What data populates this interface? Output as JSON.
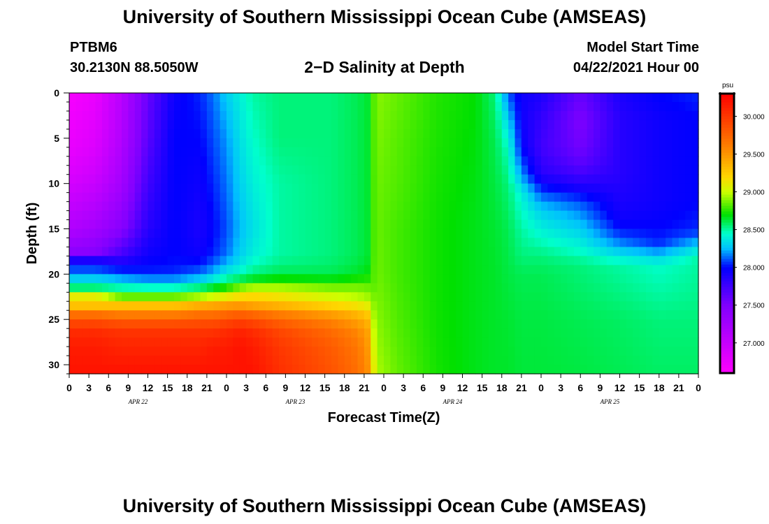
{
  "header": {
    "title": "University of Southern Mississippi Ocean Cube (AMSEAS)",
    "station": "PTBM6",
    "coords": "30.2130N  88.5050W",
    "subtitle": "2−D Salinity at Depth",
    "model_start_label": "Model Start Time",
    "model_start_value": "04/22/2021 Hour 00"
  },
  "footer": {
    "title": "University of Southern Mississippi Ocean Cube (AMSEAS)"
  },
  "chart_data": {
    "type": "heatmap",
    "title": "2−D Salinity at Depth",
    "xlabel": "Forecast Time(Z)",
    "ylabel": "Depth (ft)",
    "x_tick_labels": [
      "0",
      "3",
      "6",
      "9",
      "12",
      "15",
      "18",
      "21",
      "0",
      "3",
      "6",
      "9",
      "12",
      "15",
      "18",
      "21",
      "0",
      "3",
      "6",
      "9",
      "12",
      "15",
      "18",
      "21",
      "0",
      "3",
      "6",
      "9",
      "12",
      "15",
      "18",
      "21",
      "0"
    ],
    "day_labels": [
      "APR 22",
      "APR 23",
      "APR 24",
      "APR 25"
    ],
    "xlim_hours": [
      0,
      96
    ],
    "y_ticks": [
      0,
      5,
      10,
      15,
      20,
      25,
      30
    ],
    "ylim": [
      0,
      31
    ],
    "y_inverted": true,
    "colorbar": {
      "unit": "psu",
      "range": [
        26.6,
        30.3
      ],
      "tick_labels": [
        "30.000",
        "29.500",
        "29.000",
        "28.500",
        "28.000",
        "27.500",
        "27.000"
      ],
      "tick_values": [
        30.0,
        29.5,
        29.0,
        28.5,
        28.0,
        27.5,
        27.0
      ],
      "color_stops": [
        {
          "value": 26.6,
          "color": "#ff00ff"
        },
        {
          "value": 27.5,
          "color": "#8000ff"
        },
        {
          "value": 28.0,
          "color": "#0000ff"
        },
        {
          "value": 28.25,
          "color": "#00bfff"
        },
        {
          "value": 28.45,
          "color": "#00ffcc"
        },
        {
          "value": 28.7,
          "color": "#00e000"
        },
        {
          "value": 29.0,
          "color": "#ccff00"
        },
        {
          "value": 29.2,
          "color": "#ffd700"
        },
        {
          "value": 29.6,
          "color": "#ff8000"
        },
        {
          "value": 30.3,
          "color": "#ff0000"
        }
      ]
    },
    "series": [
      {
        "hour": 0,
        "depths": [
          0,
          3,
          6,
          9,
          12,
          15,
          17.5,
          18.5,
          19.5,
          20.5,
          21.5,
          22.5,
          23.5,
          24.5,
          26,
          28,
          31
        ],
        "values": [
          26.65,
          26.7,
          26.75,
          26.85,
          27.0,
          27.15,
          27.4,
          27.9,
          28.1,
          28.3,
          28.55,
          29.1,
          29.3,
          29.7,
          30.05,
          30.15,
          30.2
        ]
      },
      {
        "hour": 4,
        "depths": [
          0,
          3,
          6,
          9,
          12,
          15,
          17.5,
          18.5,
          19.5,
          20.5,
          21.5,
          22.5,
          23.5,
          24.5,
          26,
          28,
          31
        ],
        "values": [
          26.75,
          26.8,
          26.85,
          26.95,
          27.1,
          27.25,
          27.45,
          27.9,
          28.1,
          28.3,
          28.55,
          29.1,
          29.3,
          29.7,
          30.05,
          30.15,
          30.2
        ]
      },
      {
        "hour": 8,
        "depths": [
          0,
          5,
          10,
          15,
          18,
          19,
          20,
          21,
          22,
          23,
          24,
          26,
          28,
          31
        ],
        "values": [
          27.1,
          27.15,
          27.25,
          27.45,
          27.75,
          27.95,
          28.1,
          28.35,
          28.6,
          29.1,
          29.5,
          30.0,
          30.1,
          30.2
        ]
      },
      {
        "hour": 12,
        "depths": [
          0,
          5,
          10,
          15,
          18,
          20,
          21,
          22,
          23,
          24,
          26,
          28,
          31
        ],
        "values": [
          27.6,
          27.65,
          27.75,
          27.85,
          27.95,
          28.05,
          28.3,
          28.6,
          29.1,
          29.5,
          30.0,
          30.1,
          30.2
        ]
      },
      {
        "hour": 16,
        "depths": [
          0,
          5,
          10,
          15,
          18,
          20,
          21,
          22,
          23,
          24,
          26,
          28,
          31
        ],
        "values": [
          27.95,
          28.0,
          28.0,
          28.0,
          28.0,
          28.05,
          28.3,
          28.6,
          29.1,
          29.5,
          30.0,
          30.1,
          30.2
        ]
      },
      {
        "hour": 20,
        "depths": [
          0,
          5,
          10,
          15,
          18,
          20,
          21,
          22,
          23,
          24,
          26,
          28,
          31
        ],
        "values": [
          28.05,
          28.0,
          27.95,
          27.9,
          27.95,
          28.15,
          28.4,
          28.7,
          29.2,
          29.6,
          30.0,
          30.1,
          30.2
        ]
      },
      {
        "hour": 22,
        "depths": [
          0,
          5,
          10,
          15,
          18,
          20,
          21,
          22,
          23,
          24,
          26,
          28,
          31
        ],
        "values": [
          28.15,
          28.1,
          28.05,
          28.0,
          28.05,
          28.25,
          28.5,
          28.8,
          29.25,
          29.6,
          30.0,
          30.15,
          30.2
        ]
      },
      {
        "hour": 24,
        "depths": [
          0,
          5,
          10,
          15,
          18,
          20,
          21,
          22,
          23,
          24,
          26,
          28,
          31
        ],
        "values": [
          28.3,
          28.2,
          28.15,
          28.1,
          28.15,
          28.4,
          28.6,
          28.9,
          29.3,
          29.65,
          30.05,
          30.15,
          30.2
        ]
      },
      {
        "hour": 26,
        "depths": [
          0,
          5,
          10,
          15,
          18,
          20,
          21,
          22,
          23,
          24,
          26,
          28,
          31
        ],
        "values": [
          28.4,
          28.35,
          28.3,
          28.25,
          28.3,
          28.45,
          28.7,
          29.05,
          29.3,
          29.7,
          30.1,
          30.2,
          30.2
        ]
      },
      {
        "hour": 28,
        "depths": [
          0,
          5,
          10,
          15,
          18,
          20,
          21,
          22,
          23,
          24,
          26,
          28,
          31
        ],
        "values": [
          28.5,
          28.45,
          28.4,
          28.35,
          28.4,
          28.55,
          28.75,
          29.15,
          29.25,
          29.65,
          30.05,
          30.15,
          30.2
        ]
      },
      {
        "hour": 32,
        "depths": [
          0,
          5,
          10,
          15,
          18,
          20,
          21,
          22,
          23,
          24,
          26,
          28,
          31
        ],
        "values": [
          28.55,
          28.55,
          28.5,
          28.5,
          28.5,
          28.6,
          28.8,
          29.1,
          29.2,
          29.55,
          29.9,
          30.0,
          30.05
        ]
      },
      {
        "hour": 40,
        "depths": [
          0,
          5,
          10,
          15,
          18,
          20,
          21,
          22,
          23,
          24,
          26,
          28,
          31
        ],
        "values": [
          28.55,
          28.55,
          28.55,
          28.55,
          28.55,
          28.6,
          28.75,
          29.0,
          29.05,
          29.4,
          29.7,
          29.8,
          29.85
        ]
      },
      {
        "hour": 44,
        "depths": [
          0,
          5,
          10,
          15,
          18,
          20,
          21,
          22,
          23,
          24,
          26,
          28,
          31
        ],
        "values": [
          28.6,
          28.6,
          28.6,
          28.6,
          28.6,
          28.65,
          28.8,
          28.95,
          29.0,
          29.3,
          29.55,
          29.65,
          29.7
        ]
      },
      {
        "hour": 45.9,
        "depths": [
          0,
          5,
          10,
          15,
          18,
          20,
          21,
          22,
          23,
          24,
          26,
          28,
          31
        ],
        "values": [
          28.65,
          28.65,
          28.65,
          28.65,
          28.65,
          28.7,
          28.8,
          28.9,
          28.95,
          29.2,
          29.4,
          29.45,
          29.5
        ]
      },
      {
        "hour": 46.2,
        "depths": [
          0,
          5,
          10,
          15,
          18,
          20,
          21,
          22,
          23,
          24,
          26,
          28,
          31
        ],
        "values": [
          28.78,
          28.78,
          28.78,
          28.78,
          28.78,
          28.8,
          28.8,
          28.85,
          28.9,
          28.95,
          29.05,
          29.1,
          29.2
        ]
      },
      {
        "hour": 47,
        "depths": [
          0,
          5,
          10,
          15,
          20,
          25,
          31
        ],
        "values": [
          28.9,
          28.88,
          28.86,
          28.85,
          28.86,
          28.9,
          28.95
        ]
      },
      {
        "hour": 50,
        "depths": [
          0,
          5,
          10,
          15,
          20,
          25,
          31
        ],
        "values": [
          28.85,
          28.83,
          28.82,
          28.8,
          28.8,
          28.82,
          28.85
        ]
      },
      {
        "hour": 56,
        "depths": [
          0,
          5,
          10,
          15,
          20,
          25,
          31
        ],
        "values": [
          28.75,
          28.74,
          28.73,
          28.72,
          28.72,
          28.72,
          28.73
        ]
      },
      {
        "hour": 62,
        "depths": [
          0,
          5,
          10,
          15,
          20,
          25,
          31
        ],
        "values": [
          28.7,
          28.69,
          28.68,
          28.67,
          28.67,
          28.67,
          28.67
        ]
      },
      {
        "hour": 65,
        "depths": [
          0,
          5,
          10,
          15,
          20,
          25,
          31
        ],
        "values": [
          28.55,
          28.6,
          28.62,
          28.64,
          28.65,
          28.65,
          28.65
        ]
      },
      {
        "hour": 67,
        "depths": [
          0,
          3,
          6,
          10,
          15,
          20,
          25,
          31
        ],
        "values": [
          28.1,
          28.3,
          28.45,
          28.55,
          28.6,
          28.62,
          28.64,
          28.65
        ]
      },
      {
        "hour": 69,
        "depths": [
          0,
          3,
          6,
          9,
          11,
          15,
          18,
          20,
          25,
          31
        ],
        "values": [
          27.95,
          27.95,
          28.0,
          28.2,
          28.4,
          28.5,
          28.55,
          28.6,
          28.62,
          28.63
        ]
      },
      {
        "hour": 72,
        "depths": [
          0,
          3,
          6,
          9,
          11,
          13,
          16,
          18,
          20,
          25,
          31
        ],
        "values": [
          27.9,
          27.8,
          27.75,
          27.85,
          28.1,
          28.3,
          28.45,
          28.55,
          28.6,
          28.62,
          28.63
        ]
      },
      {
        "hour": 78,
        "depths": [
          0,
          3,
          6,
          8,
          10,
          12,
          15,
          17.5,
          19,
          25,
          31
        ],
        "values": [
          27.6,
          27.5,
          27.55,
          27.65,
          27.85,
          28.1,
          28.3,
          28.45,
          28.55,
          28.6,
          28.62
        ]
      },
      {
        "hour": 84,
        "depths": [
          0,
          3,
          6,
          9,
          12,
          14,
          16,
          17.5,
          19,
          25,
          31
        ],
        "values": [
          27.9,
          27.85,
          27.85,
          27.85,
          27.9,
          27.95,
          28.1,
          28.3,
          28.5,
          28.58,
          28.6
        ]
      },
      {
        "hour": 90,
        "depths": [
          0,
          3,
          6,
          9,
          12,
          15,
          16.5,
          17.5,
          19,
          25,
          31
        ],
        "values": [
          28.0,
          27.95,
          27.95,
          27.95,
          27.95,
          28.0,
          28.05,
          28.2,
          28.45,
          28.55,
          28.58
        ]
      },
      {
        "hour": 96,
        "depths": [
          0,
          3,
          6,
          9,
          12,
          15,
          16,
          17,
          18.5,
          25,
          31
        ],
        "values": [
          28.05,
          28.0,
          28.0,
          28.0,
          28.0,
          28.05,
          28.15,
          28.35,
          28.5,
          28.55,
          28.58
        ]
      }
    ]
  }
}
